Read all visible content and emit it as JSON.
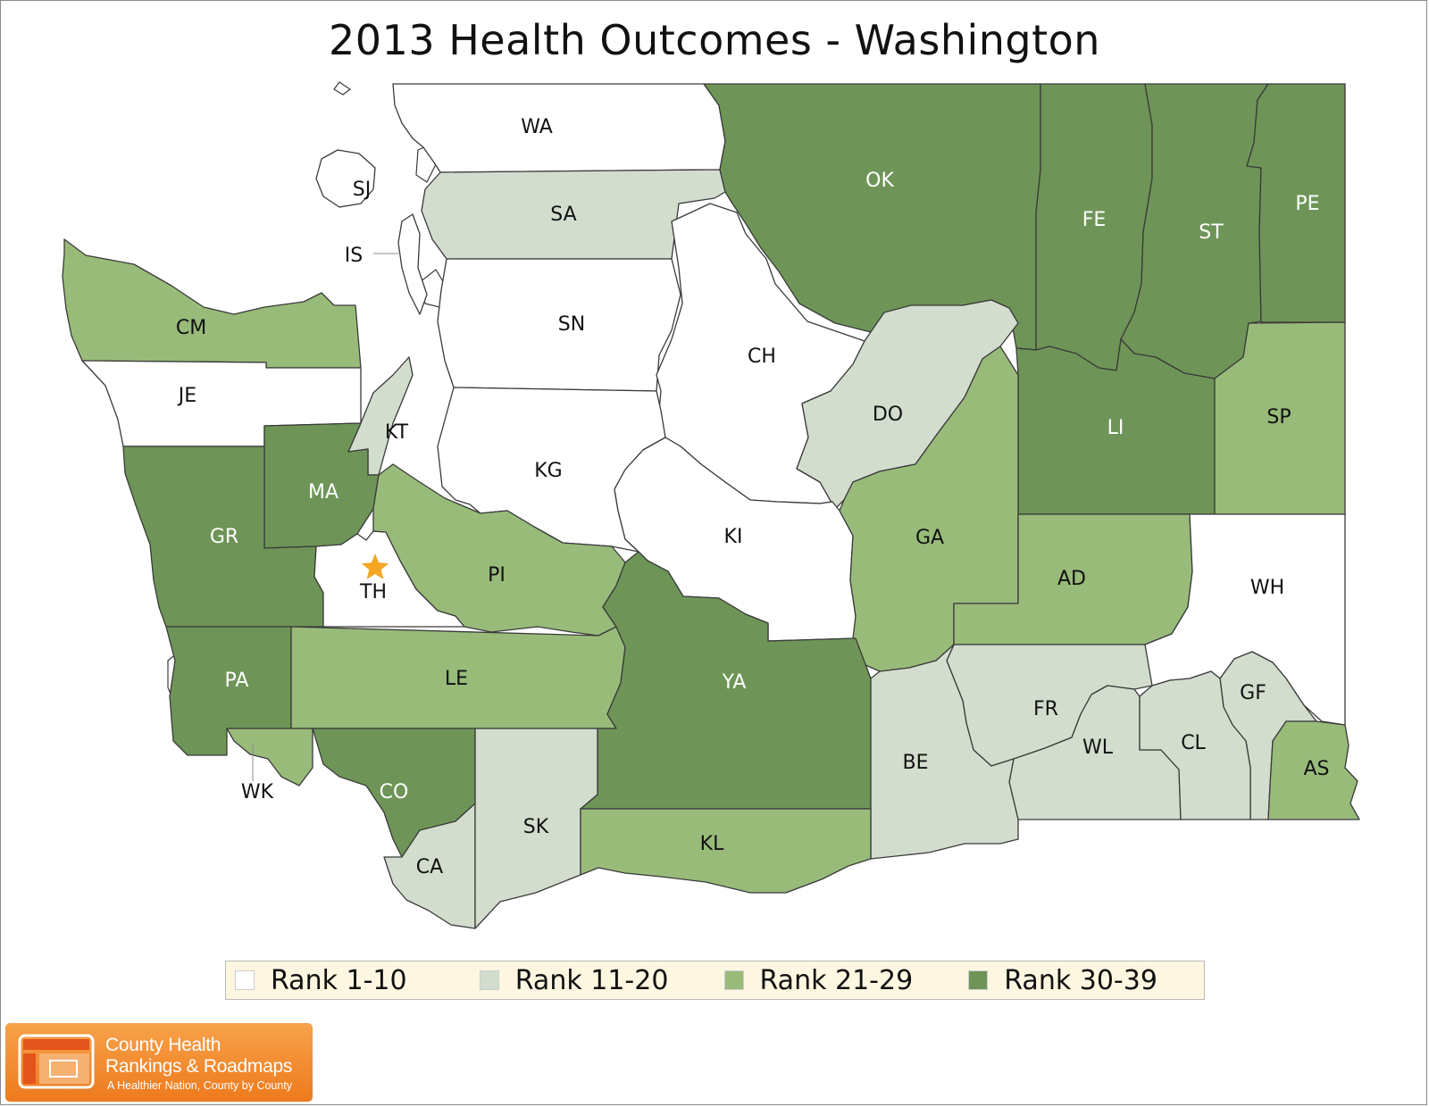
{
  "title": "2013 Health Outcomes - Washington",
  "legend": [
    {
      "key": "r1",
      "label": "Rank 1-10"
    },
    {
      "key": "r2",
      "label": "Rank 11-20"
    },
    {
      "key": "r3",
      "label": "Rank 21-29"
    },
    {
      "key": "r4",
      "label": "Rank 30-39"
    }
  ],
  "colors": {
    "r1": "#ffffff",
    "r2": "#d2ddcd",
    "r3": "#98bb7a",
    "r4": "#6e9557",
    "marker": "#f5a623",
    "label_dark": "#111111",
    "label_light": "#ffffff"
  },
  "counties": [
    {
      "code": "WA",
      "rank": "r1"
    },
    {
      "code": "SJ",
      "rank": "r1"
    },
    {
      "code": "IS",
      "rank": "r1"
    },
    {
      "code": "SA",
      "rank": "r2"
    },
    {
      "code": "SN",
      "rank": "r1"
    },
    {
      "code": "OK",
      "rank": "r4"
    },
    {
      "code": "FE",
      "rank": "r4"
    },
    {
      "code": "ST",
      "rank": "r4"
    },
    {
      "code": "PE",
      "rank": "r4"
    },
    {
      "code": "CM",
      "rank": "r3"
    },
    {
      "code": "JE",
      "rank": "r1"
    },
    {
      "code": "KT",
      "rank": "r2"
    },
    {
      "code": "CH",
      "rank": "r1"
    },
    {
      "code": "DO",
      "rank": "r2"
    },
    {
      "code": "LI",
      "rank": "r4"
    },
    {
      "code": "SP",
      "rank": "r3"
    },
    {
      "code": "KG",
      "rank": "r1"
    },
    {
      "code": "MA",
      "rank": "r4"
    },
    {
      "code": "GR",
      "rank": "r4"
    },
    {
      "code": "TH",
      "rank": "r1",
      "marker": "star"
    },
    {
      "code": "PI",
      "rank": "r3"
    },
    {
      "code": "KI",
      "rank": "r1"
    },
    {
      "code": "GA",
      "rank": "r3"
    },
    {
      "code": "AD",
      "rank": "r3"
    },
    {
      "code": "WH",
      "rank": "r1"
    },
    {
      "code": "PA",
      "rank": "r4"
    },
    {
      "code": "LE",
      "rank": "r3"
    },
    {
      "code": "YA",
      "rank": "r4"
    },
    {
      "code": "FR",
      "rank": "r2"
    },
    {
      "code": "WL",
      "rank": "r2"
    },
    {
      "code": "GF",
      "rank": "r2"
    },
    {
      "code": "CL",
      "rank": "r2"
    },
    {
      "code": "BE",
      "rank": "r2"
    },
    {
      "code": "AS",
      "rank": "r3"
    },
    {
      "code": "WK",
      "rank": "r3"
    },
    {
      "code": "CO",
      "rank": "r4"
    },
    {
      "code": "CA",
      "rank": "r2"
    },
    {
      "code": "SK",
      "rank": "r2"
    },
    {
      "code": "KL",
      "rank": "r3"
    }
  ],
  "logo": {
    "line1": "County Health",
    "line2": "Rankings & Roadmaps",
    "tagline": "A Healthier Nation, County by County"
  }
}
